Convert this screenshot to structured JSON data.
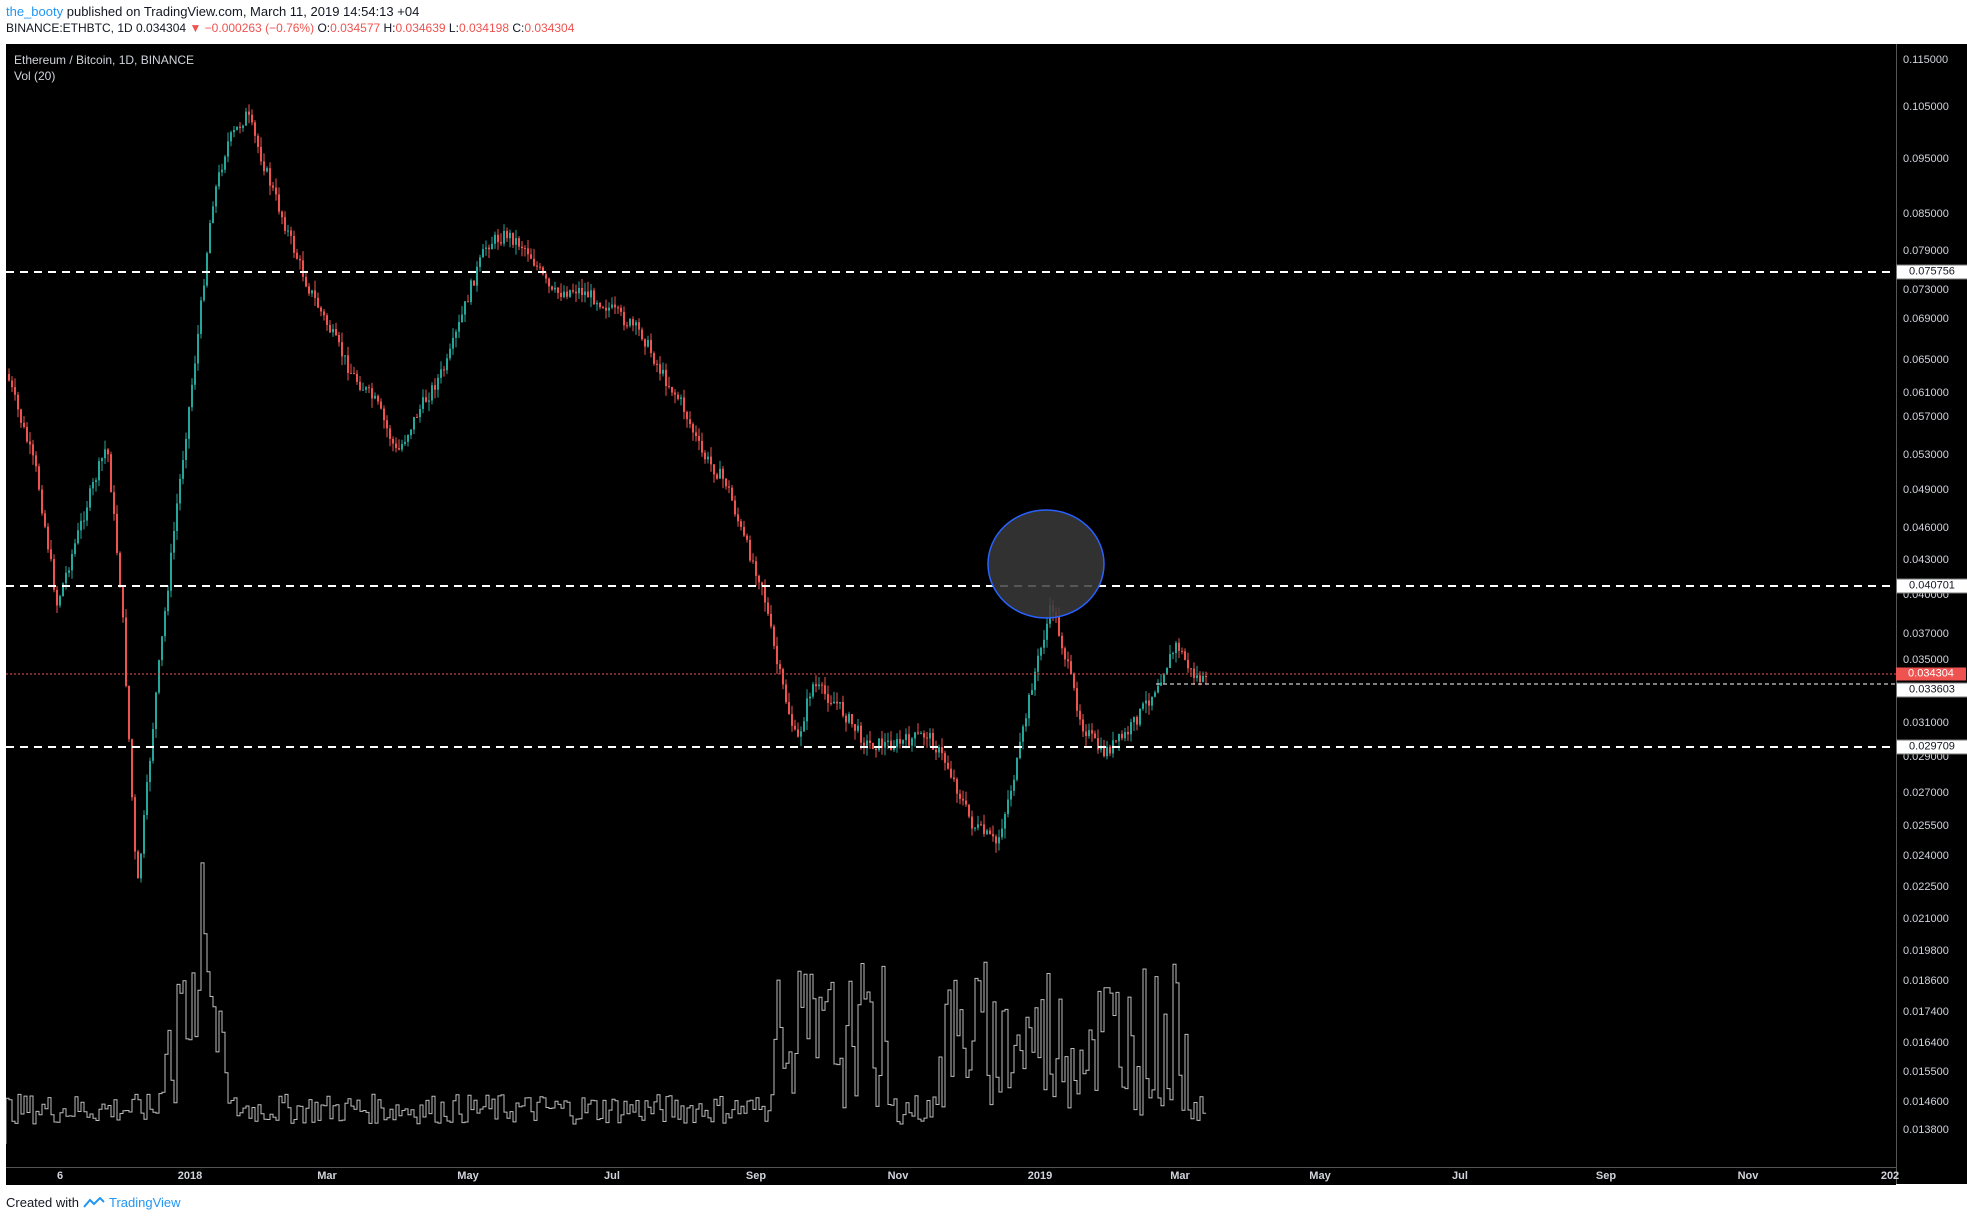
{
  "header": {
    "user": "the_booty",
    "published": "published on TradingView.com, March 11, 2019 14:54:13 +04"
  },
  "ohlc": {
    "symbol": "BINANCE:ETHBTC, 1D",
    "last": "0.034304",
    "change": "−0.000263 (−0.76%)",
    "o_label": "O:",
    "o": "0.034577",
    "h_label": "H:",
    "h": "0.034639",
    "l_label": "L:",
    "l": "0.034198",
    "c_label": "C:",
    "c": "0.034304"
  },
  "legend": {
    "title": "Ethereum / Bitcoin, 1D, BINANCE",
    "vol": "Vol (20)"
  },
  "y_ticks": [
    "0.115000",
    "0.105000",
    "0.095000",
    "0.085000",
    "0.079000",
    "0.073000",
    "0.069000",
    "0.065000",
    "0.061000",
    "0.057000",
    "0.053000",
    "0.049000",
    "0.046000",
    "0.043000",
    "0.040000",
    "0.037000",
    "0.035000",
    "0.031000",
    "0.029000",
    "0.027000",
    "0.025500",
    "0.024000",
    "0.022500",
    "0.021000",
    "0.019800",
    "0.018600",
    "0.017400",
    "0.016400",
    "0.015500",
    "0.014600",
    "0.013800"
  ],
  "x_ticks": [
    "6",
    "2018",
    "Mar",
    "May",
    "Jul",
    "Sep",
    "Nov",
    "2019",
    "Mar",
    "May",
    "Jul",
    "Sep",
    "Nov",
    "202"
  ],
  "levels": {
    "l1": "0.075756",
    "l2": "0.040701",
    "l3": "0.029709",
    "current": "0.034304",
    "support": "0.033603"
  },
  "colors": {
    "up": "#26a69a",
    "down": "#ef5350",
    "bg": "#000000",
    "accent": "#2196f3"
  },
  "footer": {
    "created": "Created with",
    "brand": "TradingView"
  }
}
